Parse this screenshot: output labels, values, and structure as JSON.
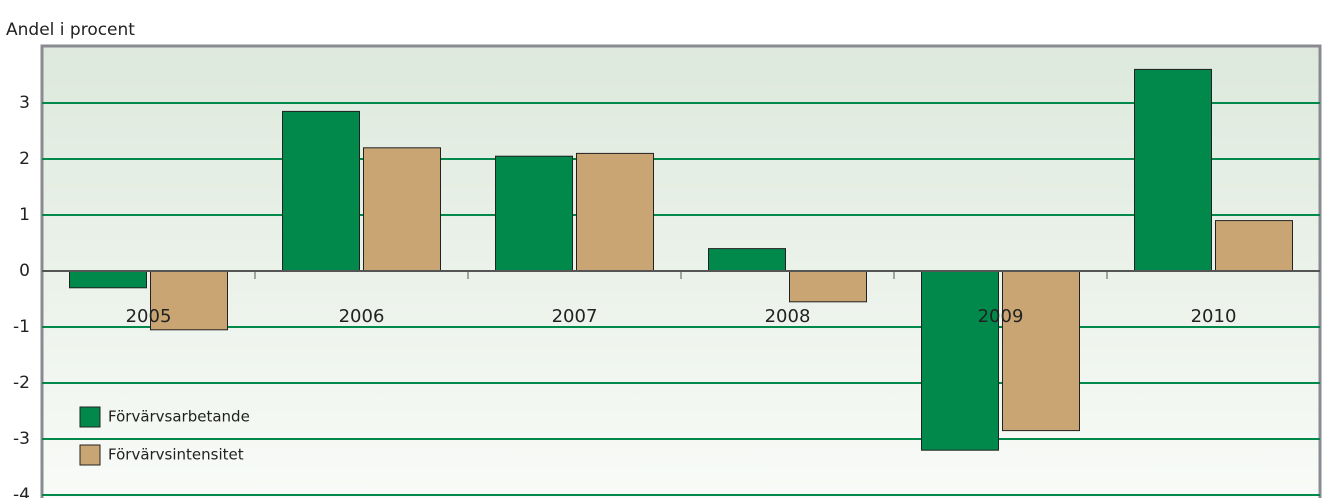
{
  "chart_data": {
    "type": "bar",
    "y_label": "Andel i procent",
    "categories": [
      "2005",
      "2006",
      "2007",
      "2008",
      "2009",
      "2010"
    ],
    "series": [
      {
        "name": "Förvärvsarbetande",
        "color": "#00894a",
        "values": [
          -0.3,
          2.85,
          2.05,
          0.4,
          -3.2,
          3.6
        ]
      },
      {
        "name": "Förvärvsintensitet",
        "color": "#c8a572",
        "values": [
          -1.05,
          2.2,
          2.1,
          -0.55,
          -2.85,
          0.9
        ]
      }
    ],
    "ylim": [
      -4,
      4
    ],
    "yticks": [
      -4,
      -3,
      -2,
      -1,
      0,
      1,
      2,
      3
    ],
    "grid": true,
    "legend": "lower left"
  }
}
